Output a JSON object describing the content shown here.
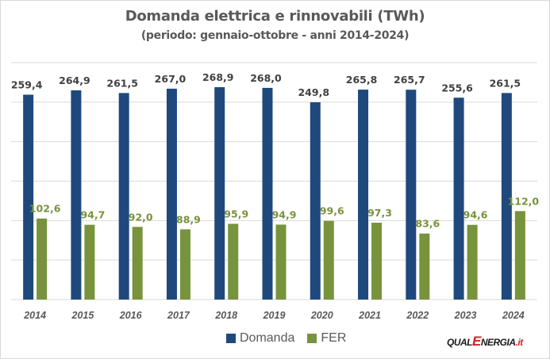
{
  "chart_data": {
    "type": "bar",
    "title": "Domanda elettrica e rinnovabili (TWh)",
    "subtitle": "(periodo: gennaio-ottobre - anni 2014-2024)",
    "xlabel": "",
    "ylabel": "",
    "ylim": [
      0,
      300
    ],
    "grid": true,
    "legend_position": "bottom",
    "categories": [
      "2014",
      "2015",
      "2016",
      "2017",
      "2018",
      "2019",
      "2020",
      "2021",
      "2022",
      "2023",
      "2024"
    ],
    "series": [
      {
        "name": "Domanda",
        "color": "#1f497d",
        "label_color": "#404040",
        "values": [
          259.4,
          264.9,
          261.5,
          267.0,
          268.9,
          268.0,
          249.8,
          265.8,
          265.7,
          255.6,
          261.5
        ],
        "labels": [
          "259,4",
          "264,9",
          "261,5",
          "267,0",
          "268,9",
          "268,0",
          "249,8",
          "265,8",
          "265,7",
          "255,6",
          "261,5"
        ]
      },
      {
        "name": "FER",
        "color": "#77933c",
        "label_color": "#77933c",
        "values": [
          102.6,
          94.7,
          92.0,
          88.9,
          95.9,
          94.9,
          99.6,
          97.3,
          83.6,
          94.6,
          112.0
        ],
        "labels": [
          "102,6",
          "94,7",
          "92,0",
          "88,9",
          "95,9",
          "94,9",
          "99,6",
          "97,3",
          "83,6",
          "94,6",
          "112,0"
        ]
      }
    ]
  },
  "legend": {
    "items": [
      {
        "label": "Domanda",
        "color": "#1f497d"
      },
      {
        "label": "FER",
        "color": "#77933c"
      }
    ]
  },
  "logo": {
    "qual": "QUAL",
    "e": "E",
    "nergia": "NERGIA",
    "it": ".it"
  }
}
